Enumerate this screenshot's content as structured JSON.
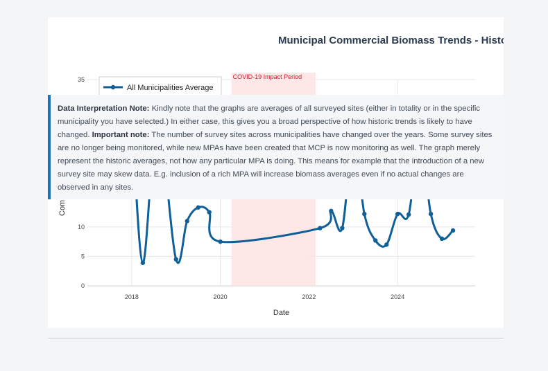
{
  "chart_data": {
    "type": "line",
    "title": "Municipal Commercial Biomass Trends - Historical Averages",
    "visible_title": "Municipal Commercial Biomass Trends - Histor",
    "xlabel": "Date",
    "ylabel": "Commercial Biomass",
    "visible_ylabel": "Com",
    "xlim": [
      2017.0,
      2025.75
    ],
    "ylim": [
      0,
      35
    ],
    "x_ticks": [
      "2018",
      "2020",
      "2022",
      "2024"
    ],
    "y_ticks": [
      "0",
      "5",
      "10",
      "35"
    ],
    "grid": true,
    "legend_position": "top-left",
    "annotation": {
      "label": "COVID-19 Impact Period",
      "x_start": 2020.25,
      "x_end": 2022.15,
      "color": "#fde3e3"
    },
    "series": [
      {
        "name": "All Municipalities Average",
        "color": "#0f5f99",
        "points": [
          {
            "x": 2018.0,
            "y": 30.0
          },
          {
            "x": 2018.25,
            "y": 3.9
          },
          {
            "x": 2018.58,
            "y": 28.0
          },
          {
            "x": 2019.0,
            "y": 4.5
          },
          {
            "x": 2019.25,
            "y": 11.0
          },
          {
            "x": 2019.5,
            "y": 13.3
          },
          {
            "x": 2019.75,
            "y": 12.5
          },
          {
            "x": 2020.0,
            "y": 7.5
          },
          {
            "x": 2022.25,
            "y": 9.8
          },
          {
            "x": 2022.5,
            "y": 12.7
          },
          {
            "x": 2022.75,
            "y": 9.8
          },
          {
            "x": 2023.0,
            "y": 25.0
          },
          {
            "x": 2023.25,
            "y": 12.2
          },
          {
            "x": 2023.5,
            "y": 7.7
          },
          {
            "x": 2023.75,
            "y": 7.0
          },
          {
            "x": 2024.0,
            "y": 12.2
          },
          {
            "x": 2024.25,
            "y": 12.1
          },
          {
            "x": 2024.5,
            "y": 25.0
          },
          {
            "x": 2024.75,
            "y": 12.2
          },
          {
            "x": 2025.0,
            "y": 8.0
          },
          {
            "x": 2025.25,
            "y": 9.4
          }
        ]
      }
    ]
  },
  "note": {
    "label1": "Data Interpretation Note:",
    "text1": " Kindly note that the graphs are averages of all surveyed sites (either in totality or in the specific municipality you have selected.) In either case, this gives you a broad perspective of how historic trends is likely to have changed. ",
    "label2": "Important note:",
    "text2": " The number of survey sites across municipalities have changed over the years. Some survey sites are no longer being monitored, while new MPAs have been created that MCP is now monitoring as well. The graph merely represent the historic averages, not how any particular MPA is doing. This means for example that the introduction of a new survey site may skew data. E.g. inclusion of a rich MPA will increase biomass averages even if no actual changes are observed in any sites."
  }
}
